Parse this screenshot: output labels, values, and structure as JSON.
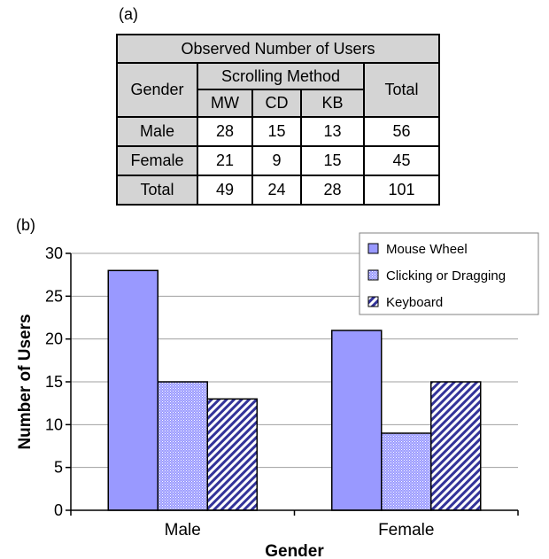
{
  "panel_a_label": "(a)",
  "panel_b_label": "(b)",
  "table": {
    "title": "Observed Number of Users",
    "gender_header": "Gender",
    "method_header": "Scrolling Method",
    "total_header": "Total",
    "sub_headers": [
      "MW",
      "CD",
      "KB"
    ],
    "rows": [
      {
        "label": "Male",
        "values": [
          "28",
          "15",
          "13"
        ],
        "total": "56"
      },
      {
        "label": "Female",
        "values": [
          "21",
          "9",
          "15"
        ],
        "total": "45"
      },
      {
        "label": "Total",
        "values": [
          "49",
          "24",
          "28"
        ],
        "total": "101"
      }
    ]
  },
  "chart_data": {
    "type": "bar",
    "categories": [
      "Male",
      "Female"
    ],
    "series": [
      {
        "name": "Mouse Wheel",
        "values": [
          28,
          21
        ],
        "fill": "#9999ff",
        "pattern": "solid"
      },
      {
        "name": "Clicking or Dragging",
        "values": [
          15,
          9
        ],
        "fill": "#9999ff",
        "pattern": "fine-dots"
      },
      {
        "name": "Keyboard",
        "values": [
          13,
          15
        ],
        "fill": "#333399",
        "pattern": "diagonal-stripes"
      }
    ],
    "xlabel": "Gender",
    "ylabel": "Number of Users",
    "ylim": [
      0,
      30
    ],
    "yticks": [
      0,
      5,
      10,
      15,
      20,
      25,
      30
    ],
    "grid": true,
    "legend_position": "top-right"
  }
}
